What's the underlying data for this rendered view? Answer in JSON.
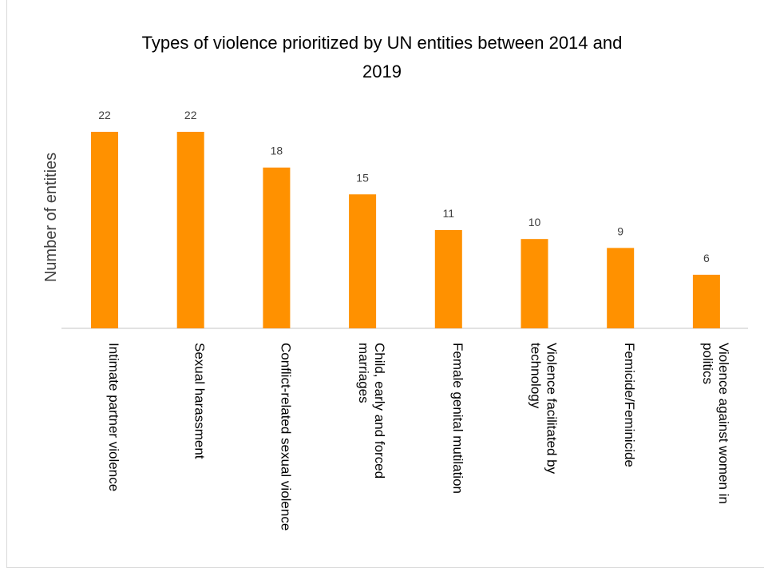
{
  "chart_data": {
    "type": "bar",
    "title_lines": [
      "Types of violence prioritized by UN entities between 2014 and",
      "2019"
    ],
    "ylabel": "Number of entities",
    "xlabel": "",
    "categories": [
      [
        "Intimate partner violence"
      ],
      [
        "Sexual harassment"
      ],
      [
        "Conflict-related sexual violence"
      ],
      [
        "Child, early and forced",
        "marriages"
      ],
      [
        "Female genital mutilation"
      ],
      [
        "Violence facilitated by",
        "technology"
      ],
      [
        "Femicide/Feminicide"
      ],
      [
        "Violence against women in",
        "politics"
      ]
    ],
    "values": [
      22,
      22,
      18,
      15,
      11,
      10,
      9,
      6
    ],
    "ylim": [
      0,
      22
    ],
    "grid": false,
    "legend": "none",
    "colors": {
      "bar": "#ff9100",
      "axis": "#d9d9d9"
    }
  }
}
